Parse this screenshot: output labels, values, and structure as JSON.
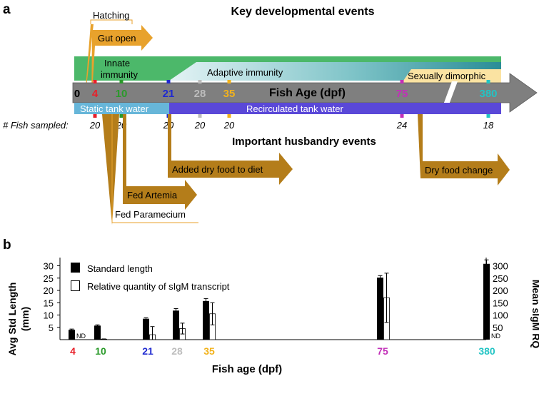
{
  "panel_a": {
    "label": "a",
    "title": "Key developmental events",
    "subtitle": "Important husbandry events",
    "axis_label": "Fish Age (dpf)",
    "sampled_label": "# Fish sampled:",
    "events": {
      "hatching": "Hatching",
      "gut_open": "Gut open",
      "innate_line1": "Innate",
      "innate_line2": "immunity",
      "adaptive": "Adaptive immunity",
      "dimorphic": "Sexually dimorphic",
      "static_water": "Static tank water",
      "recirc_water": "Recirculated tank water"
    },
    "husbandry": {
      "dry_food": "Added dry food to diet",
      "food_change": "Dry food change",
      "artemia": "Fed  Artemia",
      "paramecium": "Fed  Paramecium"
    },
    "ages": [
      {
        "label": "0",
        "color": "#000000"
      },
      {
        "label": "4",
        "color": "#e8202a"
      },
      {
        "label": "10",
        "color": "#2a9a2a"
      },
      {
        "label": "21",
        "color": "#1f2ad0"
      },
      {
        "label": "28",
        "color": "#bdbdbd"
      },
      {
        "label": "35",
        "color": "#f2b21b"
      },
      {
        "label": "75",
        "color": "#c22fb8"
      },
      {
        "label": "380",
        "color": "#23c4c4"
      }
    ],
    "fish_counts": [
      "20",
      "20",
      "20",
      "20",
      "20",
      "24",
      "18"
    ]
  },
  "colors": {
    "arrow_orange": "#e8a22c",
    "arrow_brown": "#b47d1a",
    "innate_green": "#4cb86a",
    "axis_gray": "#7f7f7f",
    "static_blue": "#67b6d9",
    "recirc_purple": "#5a48d8",
    "dimorphic_yellow": "#fbe3a2"
  },
  "chart_data": {
    "type": "bar",
    "panel_label": "b",
    "categories": [
      "4",
      "10",
      "21",
      "28",
      "35",
      "75",
      "380"
    ],
    "category_colors": [
      "#e8202a",
      "#2a9a2a",
      "#1f2ad0",
      "#bdbdbd",
      "#f2b21b",
      "#c22fb8",
      "#23c4c4"
    ],
    "xlabel": "Fish age (dpf)",
    "ylabel_left": "Avg Std Length (mm)",
    "ylabel_right": "Mean sIgM RQ",
    "ylim_left": [
      0,
      33
    ],
    "ylim_right": [
      0,
      330
    ],
    "yticks_left": [
      5,
      10,
      15,
      20,
      25,
      30
    ],
    "yticks_right": [
      50,
      100,
      150,
      200,
      250,
      300
    ],
    "nd_label": "ND",
    "series": [
      {
        "name": "Standard length",
        "axis": "left",
        "values": [
          4.0,
          5.7,
          8.5,
          11.8,
          15.7,
          25.2,
          30.8
        ],
        "errors": [
          0.3,
          0.3,
          0.4,
          0.8,
          1.0,
          0.8,
          1.6
        ]
      },
      {
        "name": "Relative quantity of sIgM transcript",
        "axis": "right",
        "values": [
          null,
          2,
          20,
          45,
          105,
          170,
          null
        ],
        "errors": [
          null,
          1,
          33,
          22,
          45,
          100,
          null
        ]
      }
    ],
    "legend": "top-left"
  }
}
